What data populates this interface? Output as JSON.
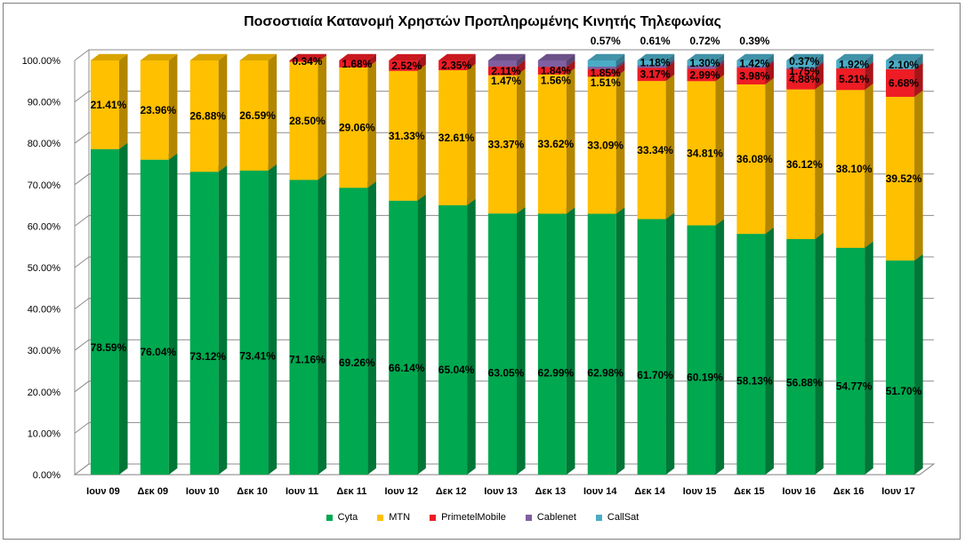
{
  "chart_data": {
    "type": "bar",
    "stacked": true,
    "title": "Ποσοστιαία Κατανομή Χρηστών Προπληρωμένης Κινητής Τηλεφωνίας",
    "xlabel": "",
    "ylabel": "",
    "ylim": [
      0,
      100
    ],
    "y_ticks": [
      "0.00%",
      "10.00%",
      "20.00%",
      "30.00%",
      "40.00%",
      "50.00%",
      "60.00%",
      "70.00%",
      "80.00%",
      "90.00%",
      "100.00%"
    ],
    "grid": true,
    "legend_position": "bottom",
    "categories": [
      "Ιουν 09",
      "Δεκ 09",
      "Ιουν 10",
      "Δεκ 10",
      "Ιουν 11",
      "Δεκ 11",
      "Ιουν 12",
      "Δεκ 12",
      "Ιουν 13",
      "Δεκ 13",
      "Ιουν 14",
      "Δεκ 14",
      "Ιουν 15",
      "Δεκ 15",
      "Ιουν 16",
      "Δεκ 16",
      "Ιουν 17"
    ],
    "series": [
      {
        "name": "Cyta",
        "color": "#00a84f",
        "values": [
          78.59,
          76.04,
          73.12,
          73.41,
          71.16,
          69.26,
          66.14,
          65.04,
          63.05,
          62.99,
          62.98,
          61.7,
          60.19,
          58.13,
          56.88,
          54.77,
          51.7
        ],
        "labels": [
          "78.59%",
          "76.04%",
          "73.12%",
          "73.41%",
          "71.16%",
          "69.26%",
          "66.14%",
          "65.04%",
          "63.05%",
          "62.99%",
          "62.98%",
          "61.70%",
          "60.19%",
          "58.13%",
          "56.88%",
          "54.77%",
          "51.70%"
        ]
      },
      {
        "name": "MTN",
        "color": "#ffc000",
        "values": [
          21.41,
          23.96,
          26.88,
          26.59,
          28.5,
          29.06,
          31.33,
          32.61,
          33.37,
          33.62,
          33.09,
          33.34,
          34.81,
          36.08,
          36.12,
          38.1,
          39.52
        ],
        "labels": [
          "21.41%",
          "23.96%",
          "26.88%",
          "26.59%",
          "28.50%",
          "29.06%",
          "31.33%",
          "32.61%",
          "33.37%",
          "33.62%",
          "33.09%",
          "33.34%",
          "34.81%",
          "36.08%",
          "36.12%",
          "38.10%",
          "39.52%"
        ]
      },
      {
        "name": "PrimetelMobile",
        "color": "#ee1c24",
        "values": [
          0,
          0,
          0,
          0,
          0.34,
          1.68,
          2.52,
          2.35,
          2.11,
          1.84,
          1.85,
          3.17,
          2.99,
          3.98,
          4.88,
          5.21,
          6.68
        ],
        "labels": [
          "",
          "",
          "",
          "",
          "0.34%",
          "1.68%",
          "2.52%",
          "2.35%",
          "2.11%",
          "1.84%",
          "1.85%",
          "3.17%",
          "2.99%",
          "3.98%",
          "4.88%",
          "5.21%",
          "6.68%"
        ]
      },
      {
        "name": "Cablenet",
        "color": "#7f5fa0",
        "values": [
          0,
          0,
          0,
          0,
          0,
          0,
          0,
          0,
          1.47,
          1.56,
          0.57,
          0.61,
          0.72,
          0.39,
          0.37,
          0,
          0
        ],
        "labels": [
          "",
          "",
          "",
          "",
          "",
          "",
          "",
          "",
          "1.47%",
          "1.56%",
          "0.57%",
          "0.61%",
          "0.72%",
          "0.39%",
          "0.37%",
          "",
          ""
        ]
      },
      {
        "name": "CallSat",
        "color": "#4bacc6",
        "values": [
          0,
          0,
          0,
          0,
          0,
          0,
          0,
          0,
          0,
          0,
          1.51,
          1.18,
          1.3,
          1.42,
          1.75,
          1.92,
          2.1
        ],
        "labels": [
          "",
          "",
          "",
          "",
          "",
          "",
          "",
          "",
          "",
          "",
          "1.51%",
          "1.18%",
          "1.30%",
          "1.42%",
          "1.75%",
          "1.92%",
          "2.10%"
        ]
      }
    ]
  }
}
